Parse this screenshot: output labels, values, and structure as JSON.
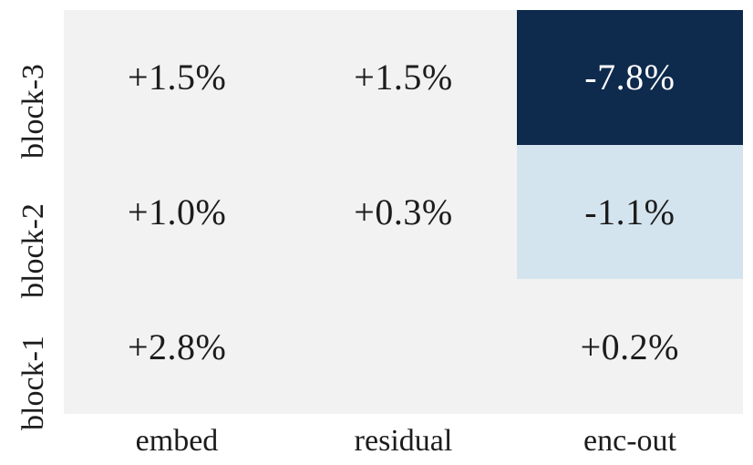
{
  "chart_data": {
    "type": "heatmap",
    "x_categories": [
      "embed",
      "residual",
      "enc-out"
    ],
    "y_categories": [
      "block-3",
      "block-2",
      "block-1"
    ],
    "rows": [
      {
        "y": "block-3",
        "cells": [
          {
            "label": "+1.5%",
            "value": 1.5,
            "bg": "#f2f2f2",
            "fg": "#1c1c1c"
          },
          {
            "label": "+1.5%",
            "value": 1.5,
            "bg": "#f2f2f2",
            "fg": "#1c1c1c"
          },
          {
            "label": "-7.8%",
            "value": -7.8,
            "bg": "#0e2a4d",
            "fg": "#ffffff"
          }
        ]
      },
      {
        "y": "block-2",
        "cells": [
          {
            "label": "+1.0%",
            "value": 1.0,
            "bg": "#f2f2f2",
            "fg": "#1c1c1c"
          },
          {
            "label": "+0.3%",
            "value": 0.3,
            "bg": "#f2f2f2",
            "fg": "#1c1c1c"
          },
          {
            "label": "-1.1%",
            "value": -1.1,
            "bg": "#d4e4ee",
            "fg": "#1c1c1c"
          }
        ]
      },
      {
        "y": "block-1",
        "cells": [
          {
            "label": "+2.8%",
            "value": 2.8,
            "bg": "#f2f2f2",
            "fg": "#1c1c1c"
          },
          {
            "label": "",
            "value": null,
            "bg": "#f2f2f2",
            "fg": "#1c1c1c"
          },
          {
            "label": "+0.2%",
            "value": 0.2,
            "bg": "#f2f2f2",
            "fg": "#1c1c1c"
          }
        ]
      }
    ],
    "colors": {
      "negative_strong_bg": "#0e2a4d",
      "negative_mild_bg": "#d4e4ee",
      "neutral_bg": "#f2f2f2",
      "text_dark": "#1c1c1c",
      "text_light": "#ffffff",
      "figure_bg": "#ffffff"
    },
    "layout": {
      "legend": false,
      "colorbar": false,
      "grid": false,
      "y_ticklabel_rotation_deg": 90
    }
  }
}
